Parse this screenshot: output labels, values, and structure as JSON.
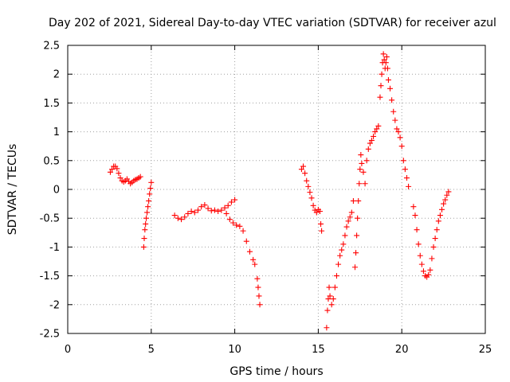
{
  "chart_data": {
    "type": "scatter",
    "title": "Day 202 of 2021, Sidereal Day-to-day VTEC variation (SDTVAR) for receiver azul",
    "xlabel": "GPS time / hours",
    "ylabel": "SDTVAR / TECUs",
    "xlim": [
      0,
      25
    ],
    "ylim": [
      -2.5,
      2.5
    ],
    "x_ticks": [
      "0",
      "5",
      "10",
      "15",
      "20",
      "25"
    ],
    "y_ticks": [
      "-2.5",
      "-2",
      "-1.5",
      "-1",
      "-0.5",
      "0",
      "0.5",
      "1",
      "1.5",
      "2",
      "2.5"
    ],
    "grid": true,
    "marker": "+",
    "color": "#ff0000",
    "series": [
      {
        "name": "seg1",
        "points": [
          [
            2.55,
            0.3
          ],
          [
            2.65,
            0.35
          ],
          [
            2.75,
            0.4
          ],
          [
            2.85,
            0.4
          ],
          [
            2.95,
            0.36
          ],
          [
            3.05,
            0.28
          ],
          [
            3.15,
            0.2
          ],
          [
            3.25,
            0.15
          ],
          [
            3.35,
            0.13
          ],
          [
            3.45,
            0.15
          ],
          [
            3.55,
            0.18
          ],
          [
            3.65,
            0.14
          ],
          [
            3.75,
            0.1
          ],
          [
            3.85,
            0.12
          ],
          [
            3.95,
            0.15
          ],
          [
            4.05,
            0.17
          ],
          [
            4.15,
            0.18
          ],
          [
            4.25,
            0.2
          ],
          [
            4.35,
            0.22
          ]
        ]
      },
      {
        "name": "seg2",
        "points": [
          [
            4.55,
            -1.0
          ],
          [
            4.58,
            -0.85
          ],
          [
            4.62,
            -0.7
          ],
          [
            4.66,
            -0.6
          ],
          [
            4.7,
            -0.5
          ],
          [
            4.75,
            -0.4
          ],
          [
            4.8,
            -0.3
          ],
          [
            4.85,
            -0.2
          ],
          [
            4.9,
            -0.08
          ],
          [
            4.95,
            0.02
          ],
          [
            5.0,
            0.12
          ]
        ]
      },
      {
        "name": "seg3",
        "points": [
          [
            6.4,
            -0.45
          ],
          [
            6.6,
            -0.5
          ],
          [
            6.8,
            -0.52
          ],
          [
            7.0,
            -0.48
          ],
          [
            7.2,
            -0.42
          ],
          [
            7.4,
            -0.38
          ],
          [
            7.6,
            -0.4
          ],
          [
            7.8,
            -0.36
          ],
          [
            8.0,
            -0.3
          ],
          [
            8.2,
            -0.27
          ],
          [
            8.4,
            -0.33
          ],
          [
            8.6,
            -0.37
          ],
          [
            8.8,
            -0.36
          ],
          [
            9.0,
            -0.38
          ],
          [
            9.2,
            -0.36
          ],
          [
            9.4,
            -0.32
          ],
          [
            9.6,
            -0.28
          ],
          [
            9.8,
            -0.22
          ],
          [
            10.0,
            -0.18
          ]
        ]
      },
      {
        "name": "seg4",
        "points": [
          [
            9.5,
            -0.42
          ],
          [
            9.7,
            -0.52
          ],
          [
            9.9,
            -0.58
          ],
          [
            10.1,
            -0.62
          ],
          [
            10.3,
            -0.64
          ],
          [
            10.5,
            -0.72
          ],
          [
            10.7,
            -0.9
          ],
          [
            10.9,
            -1.08
          ],
          [
            11.1,
            -1.22
          ],
          [
            11.2,
            -1.3
          ]
        ]
      },
      {
        "name": "seg5",
        "points": [
          [
            11.35,
            -1.55
          ],
          [
            11.4,
            -1.7
          ],
          [
            11.45,
            -1.85
          ],
          [
            11.5,
            -2.0
          ]
        ]
      },
      {
        "name": "seg6",
        "points": [
          [
            14.0,
            0.35
          ],
          [
            14.1,
            0.4
          ],
          [
            14.2,
            0.28
          ],
          [
            14.3,
            0.15
          ],
          [
            14.4,
            0.05
          ],
          [
            14.5,
            -0.05
          ],
          [
            14.6,
            -0.15
          ],
          [
            14.7,
            -0.28
          ],
          [
            14.8,
            -0.36
          ],
          [
            14.9,
            -0.4
          ],
          [
            15.0,
            -0.35
          ],
          [
            15.1,
            -0.38
          ],
          [
            15.15,
            -0.6
          ],
          [
            15.2,
            -0.72
          ]
        ]
      },
      {
        "name": "seg7",
        "points": [
          [
            15.5,
            -2.4
          ],
          [
            15.55,
            -2.1
          ],
          [
            15.6,
            -1.9
          ],
          [
            15.65,
            -1.7
          ],
          [
            15.7,
            -1.85
          ],
          [
            15.8,
            -2.0
          ],
          [
            15.9,
            -1.9
          ],
          [
            16.0,
            -1.7
          ],
          [
            16.1,
            -1.5
          ],
          [
            16.2,
            -1.3
          ],
          [
            16.3,
            -1.15
          ],
          [
            16.4,
            -1.05
          ],
          [
            16.5,
            -0.95
          ],
          [
            16.6,
            -0.8
          ],
          [
            16.7,
            -0.65
          ],
          [
            16.8,
            -0.55
          ],
          [
            16.9,
            -0.48
          ],
          [
            17.0,
            -0.4
          ],
          [
            17.1,
            -0.2
          ]
        ]
      },
      {
        "name": "seg8",
        "points": [
          [
            17.2,
            -1.35
          ],
          [
            17.25,
            -1.1
          ],
          [
            17.3,
            -0.8
          ],
          [
            17.35,
            -0.5
          ],
          [
            17.4,
            -0.2
          ],
          [
            17.45,
            0.1
          ],
          [
            17.5,
            0.35
          ],
          [
            17.55,
            0.6
          ],
          [
            17.6,
            0.45
          ],
          [
            17.7,
            0.3
          ],
          [
            17.8,
            0.1
          ],
          [
            17.9,
            0.5
          ],
          [
            18.0,
            0.7
          ],
          [
            18.1,
            0.8
          ],
          [
            18.2,
            0.85
          ],
          [
            18.3,
            0.92
          ],
          [
            18.4,
            1.0
          ],
          [
            18.5,
            1.05
          ],
          [
            18.6,
            1.1
          ]
        ]
      },
      {
        "name": "seg9",
        "points": [
          [
            18.7,
            1.6
          ],
          [
            18.75,
            1.8
          ],
          [
            18.8,
            2.0
          ],
          [
            18.85,
            2.2
          ],
          [
            18.9,
            2.35
          ],
          [
            18.95,
            2.25
          ],
          [
            19.0,
            2.1
          ],
          [
            19.05,
            2.2
          ],
          [
            19.1,
            2.3
          ],
          [
            19.15,
            2.1
          ],
          [
            19.2,
            1.9
          ],
          [
            19.3,
            1.75
          ],
          [
            19.4,
            1.55
          ],
          [
            19.5,
            1.35
          ],
          [
            19.6,
            1.2
          ],
          [
            19.7,
            1.05
          ],
          [
            19.8,
            1.0
          ],
          [
            19.9,
            0.9
          ],
          [
            20.0,
            0.75
          ],
          [
            20.1,
            0.5
          ],
          [
            20.2,
            0.35
          ],
          [
            20.3,
            0.2
          ],
          [
            20.4,
            0.05
          ]
        ]
      },
      {
        "name": "seg10",
        "points": [
          [
            20.7,
            -0.3
          ],
          [
            20.8,
            -0.45
          ],
          [
            20.9,
            -0.7
          ],
          [
            21.0,
            -0.95
          ],
          [
            21.1,
            -1.15
          ],
          [
            21.2,
            -1.3
          ],
          [
            21.3,
            -1.42
          ],
          [
            21.4,
            -1.5
          ],
          [
            21.5,
            -1.52
          ],
          [
            21.6,
            -1.48
          ],
          [
            21.7,
            -1.4
          ],
          [
            21.8,
            -1.2
          ],
          [
            21.9,
            -1.0
          ],
          [
            22.0,
            -0.85
          ],
          [
            22.1,
            -0.7
          ],
          [
            22.2,
            -0.55
          ],
          [
            22.3,
            -0.45
          ],
          [
            22.4,
            -0.35
          ],
          [
            22.5,
            -0.25
          ],
          [
            22.6,
            -0.18
          ],
          [
            22.7,
            -0.1
          ],
          [
            22.8,
            -0.04
          ]
        ]
      }
    ]
  }
}
